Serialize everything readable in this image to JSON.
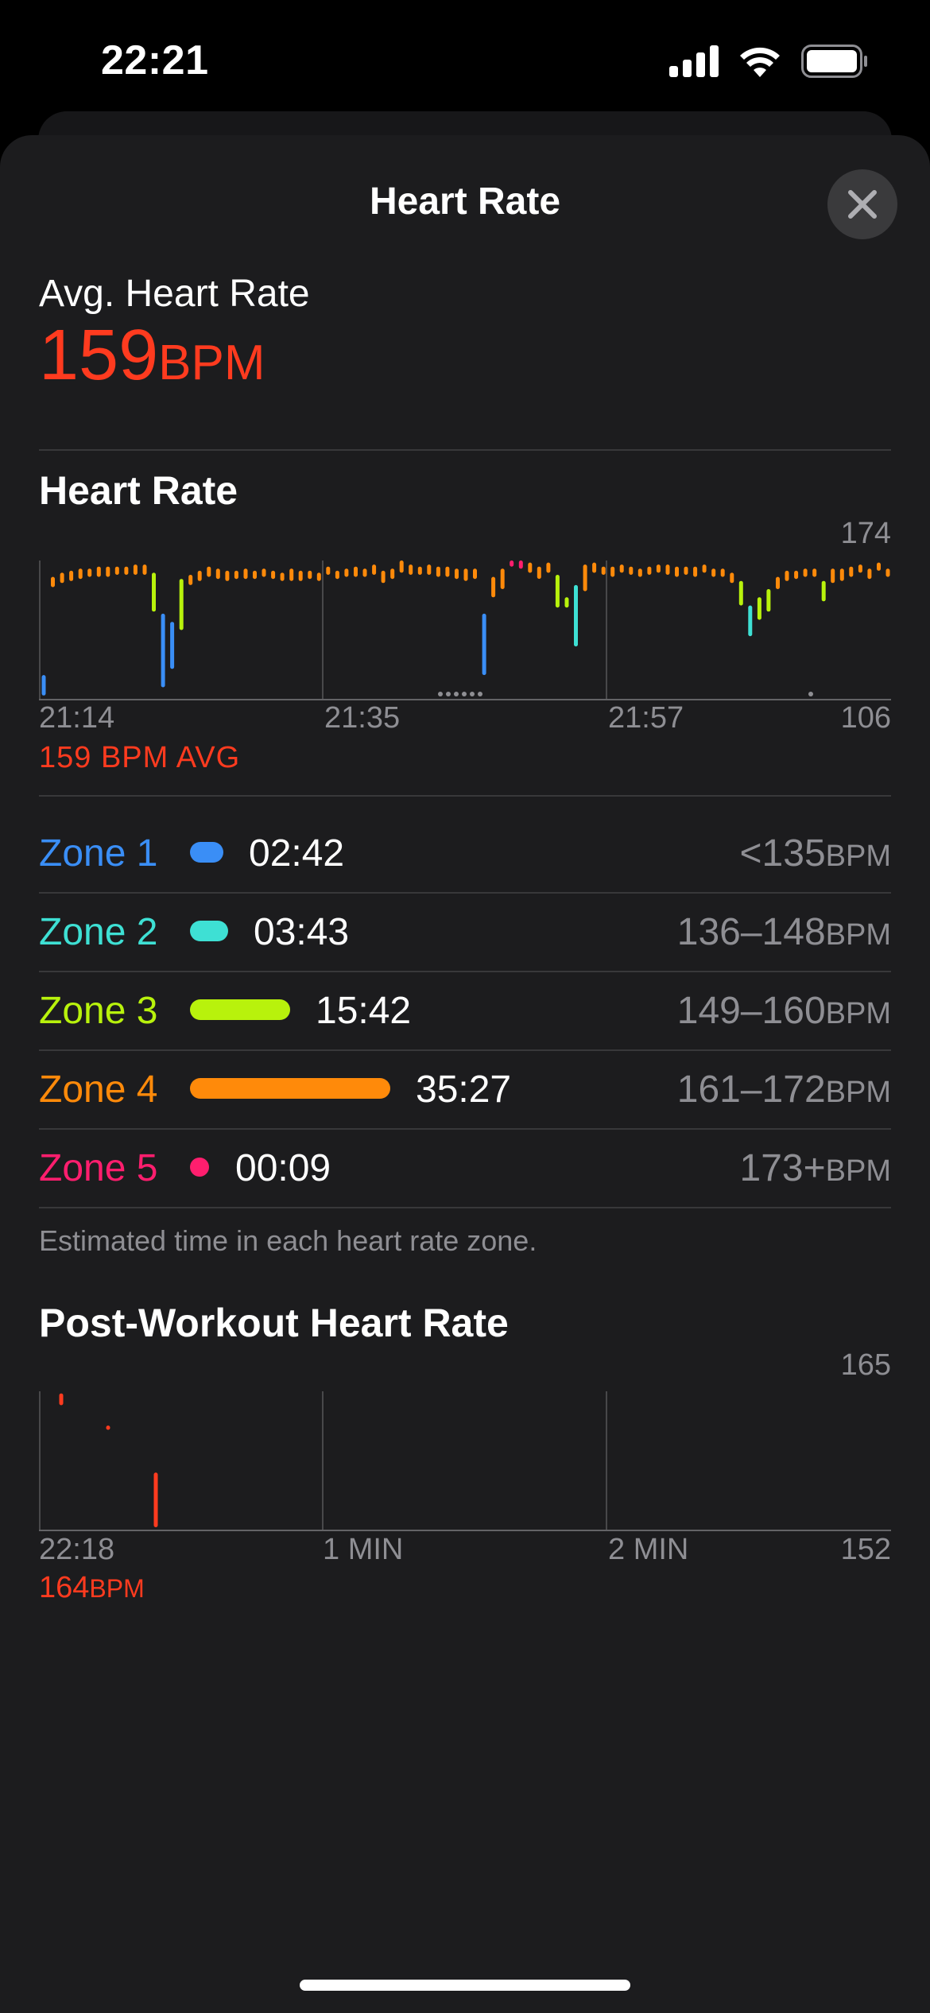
{
  "status": {
    "time": "22:21",
    "icons": [
      "cellular-signal-icon",
      "wifi-icon",
      "battery-icon"
    ]
  },
  "sheet": {
    "title": "Heart Rate",
    "close_icon": "close-icon"
  },
  "summary": {
    "label": "Avg. Heart Rate",
    "value": "159",
    "unit": "BPM"
  },
  "heart_rate_section": {
    "title": "Heart Rate",
    "avg_note": "159 BPM AVG"
  },
  "zones": {
    "items": [
      {
        "label": "Zone 1",
        "time": "02:42",
        "range": "<135",
        "unit": "BPM",
        "color": "#3a8ef6"
      },
      {
        "label": "Zone 2",
        "time": "03:43",
        "range": "136–148",
        "unit": "BPM",
        "color": "#3ee0d4"
      },
      {
        "label": "Zone 3",
        "time": "15:42",
        "range": "149–160",
        "unit": "BPM",
        "color": "#b8f20c"
      },
      {
        "label": "Zone 4",
        "time": "35:27",
        "range": "161–172",
        "unit": "BPM",
        "color": "#ff8a0a"
      },
      {
        "label": "Zone 5",
        "time": "00:09",
        "range": "173+",
        "unit": "BPM",
        "color": "#ff1e6e"
      }
    ],
    "footnote": "Estimated time in each heart rate zone."
  },
  "post_workout": {
    "title": "Post-Workout Heart Rate",
    "value": "164",
    "unit": "BPM"
  },
  "chart_data": [
    {
      "type": "bar",
      "x_tick_labels": [
        "21:14",
        "21:35",
        "21:57"
      ],
      "ylim": [
        106,
        174
      ],
      "y_tick_labels": [
        "174",
        "106"
      ],
      "bars": [
        [
          108,
          118
        ],
        [
          161,
          166
        ],
        [
          163,
          168
        ],
        [
          164,
          169
        ],
        [
          165,
          170
        ],
        [
          166,
          170
        ],
        [
          166,
          171
        ],
        [
          166,
          171
        ],
        [
          167,
          171
        ],
        [
          167,
          171
        ],
        [
          167,
          172
        ],
        [
          167,
          172
        ],
        [
          149,
          168
        ],
        [
          112,
          148
        ],
        [
          121,
          144
        ],
        [
          140,
          165
        ],
        [
          162,
          167
        ],
        [
          164,
          169
        ],
        [
          166,
          171
        ],
        [
          165,
          170
        ],
        [
          164,
          169
        ],
        [
          165,
          169
        ],
        [
          165,
          170
        ],
        [
          165,
          169
        ],
        [
          166,
          170
        ],
        [
          165,
          169
        ],
        [
          164,
          168
        ],
        [
          164,
          170
        ],
        [
          164,
          169
        ],
        [
          165,
          169
        ],
        [
          164,
          168
        ],
        [
          167,
          171
        ],
        [
          165,
          169
        ],
        [
          166,
          170
        ],
        [
          166,
          171
        ],
        [
          166,
          170
        ],
        [
          167,
          172
        ],
        [
          163,
          169
        ],
        [
          165,
          170
        ],
        [
          168,
          174
        ],
        [
          167,
          172
        ],
        [
          167,
          171
        ],
        [
          167,
          172
        ],
        [
          166,
          171
        ],
        [
          166,
          171
        ],
        [
          165,
          170
        ],
        [
          164,
          170
        ],
        [
          165,
          170
        ],
        [
          118,
          148
        ],
        [
          156,
          166
        ],
        [
          160,
          170
        ],
        [
          171,
          176
        ],
        [
          170,
          175
        ],
        [
          168,
          173
        ],
        [
          165,
          171
        ],
        [
          168,
          173
        ],
        [
          151,
          167
        ],
        [
          151,
          156
        ],
        [
          132,
          162
        ],
        [
          159,
          172
        ],
        [
          168,
          173
        ],
        [
          167,
          171
        ],
        [
          166,
          171
        ],
        [
          168,
          172
        ],
        [
          167,
          171
        ],
        [
          166,
          170
        ],
        [
          167,
          171
        ],
        [
          168,
          172
        ],
        [
          167,
          172
        ],
        [
          166,
          171
        ],
        [
          167,
          171
        ],
        [
          166,
          171
        ],
        [
          168,
          172
        ],
        [
          166,
          170
        ],
        [
          166,
          170
        ],
        [
          163,
          168
        ],
        [
          152,
          164
        ],
        [
          137,
          152
        ],
        [
          145,
          156
        ],
        [
          149,
          160
        ],
        [
          160,
          166
        ],
        [
          164,
          169
        ],
        [
          165,
          169
        ],
        [
          166,
          170
        ],
        [
          166,
          170
        ],
        [
          154,
          164
        ],
        [
          163,
          170
        ],
        [
          164,
          170
        ],
        [
          166,
          171
        ],
        [
          168,
          172
        ],
        [
          165,
          170
        ],
        [
          169,
          173
        ],
        [
          166,
          170
        ]
      ]
    },
    {
      "type": "bar",
      "x_tick_labels": [
        "22:18",
        "1 MIN",
        "2 MIN"
      ],
      "ylim": [
        152,
        165
      ],
      "y_tick_labels": [
        "165",
        "152"
      ],
      "bars": [
        [
          163.7,
          164.8
        ],
        [
          161.4,
          161.8
        ],
        [
          152.3,
          157.4
        ]
      ]
    }
  ]
}
